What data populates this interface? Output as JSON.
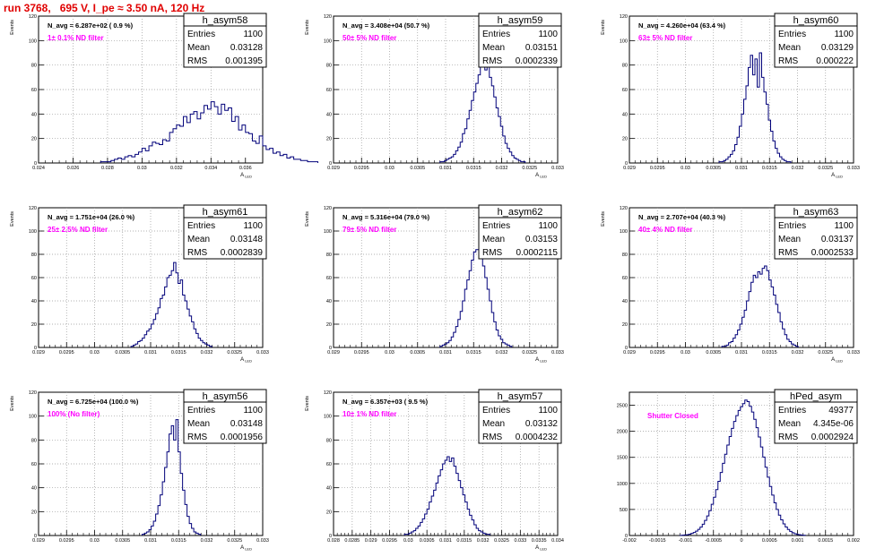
{
  "run_title": "run 3768,   695 V, I_pe ≈ 3.50 nA, 120 Hz",
  "stats_labels": {
    "entries": "Entries",
    "mean": "Mean",
    "rms": "RMS"
  },
  "colors": {
    "histogram": "#00007a",
    "filter_label": "#ff00ff",
    "run_title": "#e00000"
  },
  "chart_data": [
    {
      "type": "histogram",
      "name": "h_asym58",
      "navg": "N_avg = 6.287e+02 ( 0.9 %)",
      "label": "1± 0.1% ND filter",
      "stats": {
        "entries": "1100",
        "mean": "0.03128",
        "rms": "0.001395"
      },
      "xlabel": "A_LED",
      "ylabel": "Events",
      "xlim": [
        0.024,
        0.037
      ],
      "ylim": [
        0,
        120
      ],
      "xticks": [
        0.024,
        0.026,
        0.028,
        0.03,
        0.032,
        0.034,
        0.036
      ],
      "xtick_labels": [
        "0.024",
        "0.026",
        "0.028",
        "0.03",
        "0.032",
        "0.034",
        "0.036"
      ],
      "yticks": [
        0,
        20,
        40,
        60,
        80,
        100,
        120
      ],
      "bins_start": 0.0276,
      "bin_width": 0.0002,
      "counts": [
        1,
        1,
        1,
        2,
        3,
        4,
        3,
        5,
        6,
        5,
        7,
        9,
        12,
        10,
        14,
        17,
        16,
        15,
        19,
        18,
        25,
        28,
        31,
        30,
        38,
        33,
        40,
        42,
        36,
        41,
        47,
        44,
        50,
        46,
        40,
        48,
        43,
        45,
        34,
        38,
        27,
        31,
        25,
        24,
        18,
        16,
        22,
        14,
        11,
        12,
        8,
        9,
        6,
        7,
        4,
        5,
        3,
        3,
        2,
        2,
        1,
        1,
        1
      ]
    },
    {
      "type": "histogram",
      "name": "h_asym59",
      "navg": "N_avg = 3.408e+04 (50.7 %)",
      "label": "50± 5% ND filter",
      "stats": {
        "entries": "1100",
        "mean": "0.03151",
        "rms": "0.0002339"
      },
      "xlabel": "A_LED",
      "ylabel": "Events",
      "xlim": [
        0.029,
        0.033
      ],
      "ylim": [
        0,
        120
      ],
      "xticks": [
        0.029,
        0.0295,
        0.03,
        0.0305,
        0.031,
        0.0315,
        0.032,
        0.0325,
        0.033
      ],
      "xtick_labels": [
        "0.029",
        "0.0295",
        "0.03",
        "0.0305",
        "0.031",
        "0.0315",
        "0.032",
        "0.0325",
        "0.033"
      ],
      "yticks": [
        0,
        20,
        40,
        60,
        80,
        100,
        120
      ],
      "bins_start": 0.0309,
      "bin_width": 4e-05,
      "counts": [
        1,
        1,
        2,
        3,
        4,
        5,
        7,
        10,
        13,
        17,
        24,
        28,
        36,
        43,
        51,
        58,
        65,
        72,
        79,
        83,
        76,
        80,
        70,
        63,
        54,
        45,
        38,
        30,
        22,
        16,
        12,
        9,
        6,
        4,
        3,
        2,
        1,
        1
      ]
    },
    {
      "type": "histogram",
      "name": "h_asym60",
      "navg": "N_avg = 4.260e+04 (63.4 %)",
      "label": "63± 5% ND filter",
      "stats": {
        "entries": "1100",
        "mean": "0.03129",
        "rms": "0.000222"
      },
      "xlabel": "A_LED",
      "ylabel": "Events",
      "xlim": [
        0.029,
        0.033
      ],
      "ylim": [
        0,
        120
      ],
      "xticks": [
        0.029,
        0.0295,
        0.03,
        0.0305,
        0.031,
        0.0315,
        0.032,
        0.0325,
        0.033
      ],
      "xtick_labels": [
        "0.029",
        "0.0295",
        "0.03",
        "0.0305",
        "0.031",
        "0.0315",
        "0.032",
        "0.0325",
        "0.033"
      ],
      "yticks": [
        0,
        20,
        40,
        60,
        80,
        100,
        120
      ],
      "bins_start": 0.0306,
      "bin_width": 4e-05,
      "counts": [
        1,
        1,
        2,
        3,
        5,
        7,
        10,
        15,
        21,
        30,
        40,
        52,
        63,
        78,
        88,
        72,
        85,
        62,
        90,
        70,
        58,
        48,
        35,
        26,
        18,
        12,
        8,
        5,
        3,
        2,
        1,
        1
      ]
    },
    {
      "type": "histogram",
      "name": "h_asym61",
      "navg": "N_avg = 1.751e+04 (26.0 %)",
      "label": "25± 2.5% ND filter",
      "stats": {
        "entries": "1100",
        "mean": "0.03148",
        "rms": "0.0002839"
      },
      "xlabel": "A_LED",
      "ylabel": "Events",
      "xlim": [
        0.029,
        0.033
      ],
      "ylim": [
        0,
        120
      ],
      "xticks": [
        0.029,
        0.0295,
        0.03,
        0.0305,
        0.031,
        0.0315,
        0.032,
        0.0325,
        0.033
      ],
      "xtick_labels": [
        "0.029",
        "0.0295",
        "0.03",
        "0.0305",
        "0.031",
        "0.0315",
        "0.032",
        "0.0325",
        "0.033"
      ],
      "yticks": [
        0,
        20,
        40,
        60,
        80,
        100,
        120
      ],
      "bins_start": 0.03065,
      "bin_width": 4e-05,
      "counts": [
        1,
        2,
        3,
        5,
        6,
        8,
        11,
        14,
        16,
        20,
        24,
        29,
        34,
        42,
        45,
        52,
        60,
        62,
        66,
        73,
        64,
        55,
        58,
        45,
        40,
        33,
        27,
        22,
        16,
        12,
        8,
        6,
        4,
        3,
        2,
        1
      ]
    },
    {
      "type": "histogram",
      "name": "h_asym62",
      "navg": "N_avg = 5.316e+04 (79.0 %)",
      "label": "79± 5% ND filter",
      "stats": {
        "entries": "1100",
        "mean": "0.03153",
        "rms": "0.0002115"
      },
      "xlabel": "A_LED",
      "ylabel": "Events",
      "xlim": [
        0.029,
        0.033
      ],
      "ylim": [
        0,
        120
      ],
      "xticks": [
        0.029,
        0.0295,
        0.03,
        0.0305,
        0.031,
        0.0315,
        0.032,
        0.0325,
        0.033
      ],
      "xtick_labels": [
        "0.029",
        "0.0295",
        "0.03",
        "0.0305",
        "0.031",
        "0.0315",
        "0.032",
        "0.0325",
        "0.033"
      ],
      "yticks": [
        0,
        20,
        40,
        60,
        80,
        100,
        120
      ],
      "bins_start": 0.0309,
      "bin_width": 4e-05,
      "counts": [
        1,
        2,
        3,
        4,
        6,
        9,
        13,
        18,
        24,
        31,
        40,
        50,
        58,
        66,
        75,
        82,
        84,
        84,
        78,
        70,
        60,
        50,
        40,
        30,
        22,
        15,
        10,
        7,
        4,
        3,
        2,
        1
      ]
    },
    {
      "type": "histogram",
      "name": "h_asym63",
      "navg": "N_avg = 2.707e+04 (40.3 %)",
      "label": "40± 4% ND filter",
      "stats": {
        "entries": "1100",
        "mean": "0.03137",
        "rms": "0.0002533"
      },
      "xlabel": "A_LED",
      "ylabel": "Events",
      "xlim": [
        0.029,
        0.033
      ],
      "ylim": [
        0,
        120
      ],
      "xticks": [
        0.029,
        0.0295,
        0.03,
        0.0305,
        0.031,
        0.0315,
        0.032,
        0.0325,
        0.033
      ],
      "xtick_labels": [
        "0.029",
        "0.0295",
        "0.03",
        "0.0305",
        "0.031",
        "0.0315",
        "0.032",
        "0.0325",
        "0.033"
      ],
      "yticks": [
        0,
        20,
        40,
        60,
        80,
        100,
        120
      ],
      "bins_start": 0.03065,
      "bin_width": 4e-05,
      "counts": [
        1,
        1,
        2,
        4,
        5,
        8,
        11,
        15,
        20,
        26,
        32,
        40,
        48,
        56,
        62,
        60,
        65,
        63,
        68,
        70,
        66,
        58,
        52,
        45,
        37,
        30,
        22,
        16,
        11,
        7,
        5,
        3,
        2,
        1
      ]
    },
    {
      "type": "histogram",
      "name": "h_asym56",
      "navg": "N_avg = 6.725e+04 (100.0 %)",
      "label": "100% (No filter)",
      "stats": {
        "entries": "1100",
        "mean": "0.03148",
        "rms": "0.0001956"
      },
      "xlabel": "A_LED",
      "ylabel": "Events",
      "xlim": [
        0.029,
        0.033
      ],
      "ylim": [
        0,
        120
      ],
      "xticks": [
        0.029,
        0.0295,
        0.03,
        0.0305,
        0.031,
        0.0315,
        0.032,
        0.0325,
        0.033
      ],
      "xtick_labels": [
        "0.029",
        "0.0295",
        "0.03",
        "0.0305",
        "0.031",
        "0.0315",
        "0.032",
        "0.0325",
        "0.033"
      ],
      "yticks": [
        0,
        20,
        40,
        60,
        80,
        100,
        120
      ],
      "bins_start": 0.03085,
      "bin_width": 4e-05,
      "counts": [
        1,
        2,
        3,
        5,
        8,
        12,
        18,
        25,
        34,
        45,
        57,
        70,
        85,
        92,
        80,
        97,
        70,
        52,
        38,
        26,
        16,
        10,
        6,
        3,
        2,
        1
      ]
    },
    {
      "type": "histogram",
      "name": "h_asym57",
      "navg": "N_avg = 6.357e+03 ( 9.5 %)",
      "label": "10± 1% ND filter",
      "stats": {
        "entries": "1100",
        "mean": "0.03132",
        "rms": "0.0004232"
      },
      "xlabel": "A_LED",
      "ylabel": "Events",
      "xlim": [
        0.028,
        0.034
      ],
      "ylim": [
        0,
        120
      ],
      "xticks": [
        0.028,
        0.0285,
        0.029,
        0.0295,
        0.03,
        0.0305,
        0.031,
        0.0315,
        0.032,
        0.0325,
        0.033,
        0.0335,
        0.034
      ],
      "xtick_labels": [
        "0.028",
        "0.0285",
        "0.029",
        "0.0295",
        "0.03",
        "0.0305",
        "0.031",
        "0.0315",
        "0.032",
        "0.0325",
        "0.033",
        "0.0335",
        "0.034"
      ],
      "yticks": [
        0,
        20,
        40,
        60,
        80,
        100,
        120
      ],
      "bins_start": 0.0299,
      "bin_width": 6e-05,
      "counts": [
        1,
        1,
        2,
        3,
        4,
        6,
        8,
        11,
        14,
        18,
        22,
        28,
        33,
        38,
        44,
        50,
        55,
        60,
        63,
        66,
        62,
        65,
        58,
        52,
        46,
        40,
        34,
        28,
        22,
        17,
        13,
        9,
        6,
        4,
        3,
        2,
        1,
        1
      ]
    },
    {
      "type": "histogram",
      "name": "hPed_asym",
      "navg": "",
      "label": "Shutter Closed",
      "stats": {
        "entries": "49377",
        "mean": "4.345e-06",
        "rms": "0.0002924"
      },
      "xlabel": "",
      "ylabel": "",
      "xlim": [
        -0.002,
        0.002
      ],
      "ylim": [
        0,
        2750
      ],
      "xticks": [
        -0.002,
        -0.0015,
        -0.001,
        -0.0005,
        0,
        0.0005,
        0.001,
        0.0015,
        0.002
      ],
      "xtick_labels": [
        "-0.002",
        "-0.0015",
        "-0.001",
        "-0.0005",
        "0",
        "0.0005",
        "0.001",
        "0.0015",
        "0.002"
      ],
      "yticks": [
        0,
        500,
        1000,
        1500,
        2000,
        2500
      ],
      "bins_start": -0.0011,
      "bin_width": 4e-05,
      "counts": [
        3,
        6,
        10,
        16,
        26,
        40,
        58,
        84,
        118,
        162,
        218,
        290,
        375,
        478,
        600,
        735,
        880,
        1040,
        1210,
        1385,
        1560,
        1735,
        1900,
        2055,
        2190,
        2300,
        2400,
        2470,
        2530,
        2600,
        2570,
        2480,
        2370,
        2230,
        2070,
        1890,
        1700,
        1505,
        1310,
        1120,
        940,
        775,
        628,
        500,
        392,
        300,
        224,
        163,
        116,
        80,
        54,
        35,
        22,
        14,
        8,
        5
      ]
    }
  ]
}
